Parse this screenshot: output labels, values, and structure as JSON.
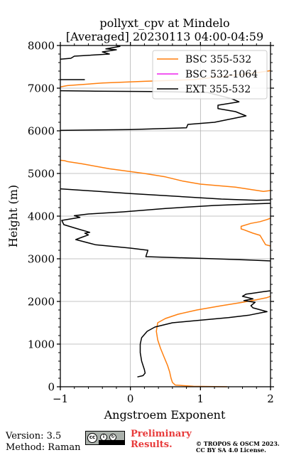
{
  "chart_data": {
    "type": "line",
    "title": "pollyxt_cpv at Mindelo",
    "subtitle": "[Averaged] 20230113 04:00-04:59",
    "xlabel": "Angstroem Exponent",
    "ylabel": "Height (m)",
    "xlim": [
      -1,
      2
    ],
    "ylim": [
      0,
      8000
    ],
    "xticks": [
      -1,
      0,
      1,
      2
    ],
    "yticks": [
      0,
      1000,
      2000,
      3000,
      4000,
      5000,
      6000,
      7000,
      8000
    ],
    "grid": true,
    "legend_position": "upper-right",
    "series": [
      {
        "name": "BSC 355-532",
        "color": "#ff7f0e",
        "segments": [
          [
            [
              1.38,
              0
            ],
            [
              0.9,
              10
            ],
            [
              0.64,
              40
            ],
            [
              0.6,
              100
            ],
            [
              0.58,
              200
            ],
            [
              0.56,
              350
            ],
            [
              0.53,
              500
            ],
            [
              0.48,
              700
            ],
            [
              0.43,
              900
            ],
            [
              0.39,
              1100
            ],
            [
              0.37,
              1300
            ],
            [
              0.39,
              1500
            ],
            [
              0.5,
              1600
            ],
            [
              0.68,
              1700
            ],
            [
              0.95,
              1800
            ],
            [
              1.3,
              1900
            ],
            [
              1.6,
              1980
            ],
            [
              1.8,
              2040
            ],
            [
              1.95,
              2090
            ],
            [
              2.0,
              2120
            ]
          ],
          [
            [
              2.0,
              3300
            ],
            [
              1.93,
              3330
            ],
            [
              1.85,
              3550
            ],
            [
              1.75,
              3600
            ],
            [
              1.62,
              3680
            ],
            [
              1.58,
              3700
            ],
            [
              1.58,
              3760
            ],
            [
              1.72,
              3830
            ],
            [
              1.85,
              3870
            ],
            [
              1.95,
              3920
            ],
            [
              2.0,
              3950
            ]
          ],
          [
            [
              2.0,
              4600
            ],
            [
              1.9,
              4580
            ],
            [
              1.5,
              4680
            ],
            [
              1.0,
              4750
            ],
            [
              0.75,
              4820
            ],
            [
              0.5,
              4920
            ],
            [
              0.2,
              5000
            ],
            [
              -0.3,
              5110
            ],
            [
              -0.7,
              5230
            ],
            [
              -0.9,
              5280
            ],
            [
              -0.94,
              5300
            ],
            [
              -1.0,
              5310
            ]
          ],
          [
            [
              -1.0,
              7030
            ],
            [
              -0.9,
              7060
            ],
            [
              -0.4,
              7120
            ],
            [
              0.2,
              7160
            ],
            [
              0.9,
              7200
            ],
            [
              1.8,
              7360
            ],
            [
              2.0,
              7410
            ]
          ]
        ]
      },
      {
        "name": "BSC 532-1064",
        "color": "#ee22ee",
        "segments": []
      },
      {
        "name": "EXT 355-532",
        "color": "#000000",
        "segments": [
          [
            [
              0.1,
              230
            ],
            [
              0.18,
              260
            ],
            [
              0.21,
              320
            ],
            [
              0.2,
              400
            ],
            [
              0.16,
              600
            ],
            [
              0.14,
              800
            ],
            [
              0.14,
              1000
            ],
            [
              0.16,
              1150
            ],
            [
              0.24,
              1300
            ],
            [
              0.35,
              1400
            ],
            [
              0.6,
              1500
            ],
            [
              1.0,
              1560
            ],
            [
              1.4,
              1620
            ],
            [
              1.7,
              1680
            ],
            [
              1.88,
              1740
            ],
            [
              1.95,
              1760
            ],
            [
              1.75,
              1850
            ],
            [
              1.72,
              1900
            ],
            [
              1.78,
              1980
            ],
            [
              1.62,
              2020
            ],
            [
              1.75,
              2060
            ],
            [
              1.6,
              2120
            ],
            [
              1.65,
              2170
            ],
            [
              1.78,
              2200
            ],
            [
              1.9,
              2230
            ],
            [
              2.0,
              2250
            ]
          ],
          [
            [
              2.0,
              2950
            ],
            [
              1.7,
              2970
            ],
            [
              1.2,
              3000
            ],
            [
              0.6,
              3030
            ],
            [
              0.22,
              3050
            ],
            [
              0.25,
              3200
            ],
            [
              0.0,
              3250
            ],
            [
              -0.5,
              3330
            ],
            [
              -0.78,
              3450
            ],
            [
              -0.7,
              3500
            ],
            [
              -0.6,
              3560
            ],
            [
              -0.65,
              3600
            ],
            [
              -0.58,
              3620
            ],
            [
              -0.75,
              3700
            ],
            [
              -0.95,
              3800
            ],
            [
              -0.98,
              3900
            ],
            [
              -0.72,
              3970
            ],
            [
              -0.8,
              4010
            ],
            [
              -0.6,
              4050
            ],
            [
              -0.1,
              4100
            ],
            [
              0.5,
              4180
            ],
            [
              1.2,
              4250
            ],
            [
              1.8,
              4290
            ],
            [
              2.0,
              4300
            ]
          ],
          [
            [
              2.0,
              4380
            ],
            [
              1.8,
              4370
            ],
            [
              1.3,
              4400
            ],
            [
              0.0,
              4530
            ],
            [
              -1.0,
              4640
            ]
          ],
          [
            [
              -1.0,
              6010
            ],
            [
              0.0,
              6030
            ],
            [
              0.8,
              6070
            ],
            [
              0.82,
              6150
            ],
            [
              1.2,
              6200
            ],
            [
              1.65,
              6350
            ],
            [
              1.5,
              6450
            ],
            [
              1.25,
              6520
            ],
            [
              1.25,
              6600
            ],
            [
              1.55,
              6680
            ],
            [
              1.45,
              6750
            ],
            [
              1.1,
              6900
            ],
            [
              0.3,
              6920
            ],
            [
              -0.5,
              6930
            ],
            [
              -1.0,
              6940
            ]
          ],
          [
            [
              -1.0,
              7200
            ],
            [
              -0.65,
              7200
            ]
          ],
          [
            [
              -1.0,
              7680
            ],
            [
              -0.85,
              7700
            ],
            [
              -0.8,
              7750
            ],
            [
              -0.3,
              7800
            ],
            [
              -0.4,
              7850
            ],
            [
              -0.2,
              7900
            ],
            [
              -0.35,
              7920
            ],
            [
              -0.15,
              7980
            ],
            [
              -0.2,
              8000
            ]
          ]
        ]
      }
    ]
  },
  "footer": {
    "version": "Version: 3.5",
    "method": "Method: Raman",
    "preliminary_line1": "Preliminary",
    "preliminary_line2": "Results.",
    "copyright_line1": "© TROPOS & OSCM 2023.",
    "copyright_line2": "CC BY SA 4.0 License.",
    "license_badge_icon": "cc-by-sa-badge-icon",
    "colors": {
      "preliminary": "#e83a3a"
    }
  }
}
